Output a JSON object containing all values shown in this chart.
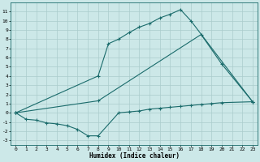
{
  "line1_x": [
    0,
    8,
    9,
    10,
    11,
    12,
    13,
    14,
    15,
    16,
    17,
    23
  ],
  "line1_y": [
    0,
    4,
    7.5,
    8.0,
    8.7,
    9.3,
    9.7,
    10.3,
    10.7,
    11.2,
    10.0,
    1.2
  ],
  "line2_x": [
    0,
    8,
    18,
    20,
    23
  ],
  "line2_y": [
    0,
    1.3,
    8.5,
    5.3,
    1.2
  ],
  "line3_x": [
    0,
    1,
    2,
    3,
    4,
    5,
    6,
    7,
    8,
    10,
    11,
    12,
    13,
    14,
    15,
    16,
    17,
    18,
    19,
    20,
    23
  ],
  "line3_y": [
    0,
    -0.7,
    -0.8,
    -1.1,
    -1.2,
    -1.4,
    -1.8,
    -2.5,
    -2.5,
    0,
    0.1,
    0.2,
    0.4,
    0.5,
    0.6,
    0.7,
    0.8,
    0.9,
    1.0,
    1.1,
    1.2
  ],
  "color": "#1a6b6b",
  "bgcolor": "#cce8e8",
  "grid_color": "#aacccc",
  "xlabel": "Humidex (Indice chaleur)",
  "xlim": [
    -0.5,
    23.5
  ],
  "ylim": [
    -3.5,
    12.0
  ],
  "xticks": [
    0,
    1,
    2,
    3,
    4,
    5,
    6,
    7,
    8,
    9,
    10,
    11,
    12,
    13,
    14,
    15,
    16,
    17,
    18,
    19,
    20,
    21,
    22,
    23
  ],
  "yticks": [
    -3,
    -2,
    -1,
    0,
    1,
    2,
    3,
    4,
    5,
    6,
    7,
    8,
    9,
    10,
    11
  ],
  "xlabel_fontsize": 5.5,
  "tick_fontsize": 4.5
}
